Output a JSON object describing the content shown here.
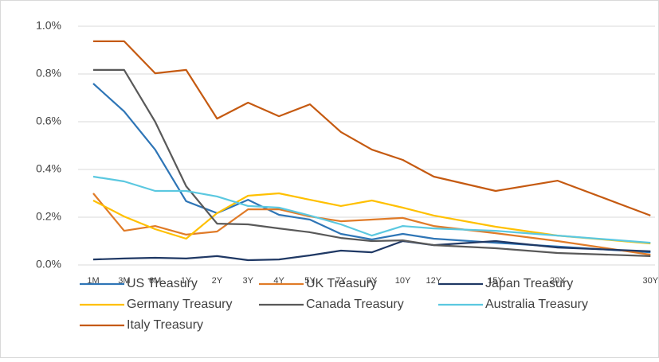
{
  "chart_data": {
    "type": "line",
    "categories": [
      "1M",
      "3M",
      "6M",
      "1Y",
      "2Y",
      "3Y",
      "4Y",
      "5Y",
      "7Y",
      "9Y",
      "10Y",
      "12Y",
      "15Y",
      "20Y",
      "30Y"
    ],
    "ylim": [
      0,
      1.0
    ],
    "yticks": [
      {
        "value": 0,
        "label": "0.0%"
      },
      {
        "value": 0.2,
        "label": "0.2%"
      },
      {
        "value": 0.4,
        "label": "0.4%"
      },
      {
        "value": 0.6,
        "label": "0.6%"
      },
      {
        "value": 0.8,
        "label": "0.8%"
      },
      {
        "value": 1.0,
        "label": "1.0%"
      }
    ],
    "grid": true,
    "legend": "bottom",
    "series": [
      {
        "name": "US Treasury",
        "color": "#2e75b6",
        "values": [
          0.76,
          0.643,
          0.483,
          0.267,
          0.217,
          0.273,
          0.21,
          0.19,
          0.13,
          0.107,
          0.13,
          0.11,
          0.093,
          0.077,
          0.053
        ]
      },
      {
        "name": "UK Treasury",
        "color": "#e07b28",
        "values": [
          0.3,
          0.143,
          0.163,
          0.127,
          0.14,
          0.233,
          0.233,
          0.203,
          0.183,
          0.19,
          0.197,
          0.163,
          0.133,
          0.1,
          0.043
        ]
      },
      {
        "name": "Japan Treasury",
        "color": "#1f3864",
        "values": [
          0.023,
          0.027,
          0.03,
          0.027,
          0.037,
          0.02,
          0.023,
          0.04,
          0.06,
          0.053,
          0.1,
          0.083,
          0.1,
          0.073,
          0.057
        ]
      },
      {
        "name": "Germany Treasury",
        "color": "#ffc000",
        "values": [
          0.27,
          0.203,
          0.15,
          0.11,
          0.217,
          0.29,
          0.3,
          0.273,
          0.247,
          0.27,
          0.24,
          0.207,
          0.16,
          0.123,
          0.09
        ]
      },
      {
        "name": "Canada Treasury",
        "color": "#595959",
        "values": [
          0.817,
          0.817,
          0.6,
          0.33,
          0.173,
          0.17,
          0.153,
          0.137,
          0.113,
          0.1,
          0.103,
          0.083,
          0.07,
          0.05,
          0.037
        ]
      },
      {
        "name": "Australia Treasury",
        "color": "#5bc8e0",
        "values": [
          0.37,
          0.35,
          0.31,
          0.31,
          0.287,
          0.247,
          0.24,
          0.207,
          0.17,
          0.123,
          0.163,
          0.153,
          0.143,
          0.123,
          0.093
        ]
      },
      {
        "name": "Italy Treasury",
        "color": "#c55a11",
        "values": [
          0.937,
          0.937,
          0.803,
          0.817,
          0.613,
          0.68,
          0.623,
          0.673,
          0.557,
          0.483,
          0.44,
          0.37,
          0.31,
          0.353,
          0.207
        ]
      }
    ]
  }
}
